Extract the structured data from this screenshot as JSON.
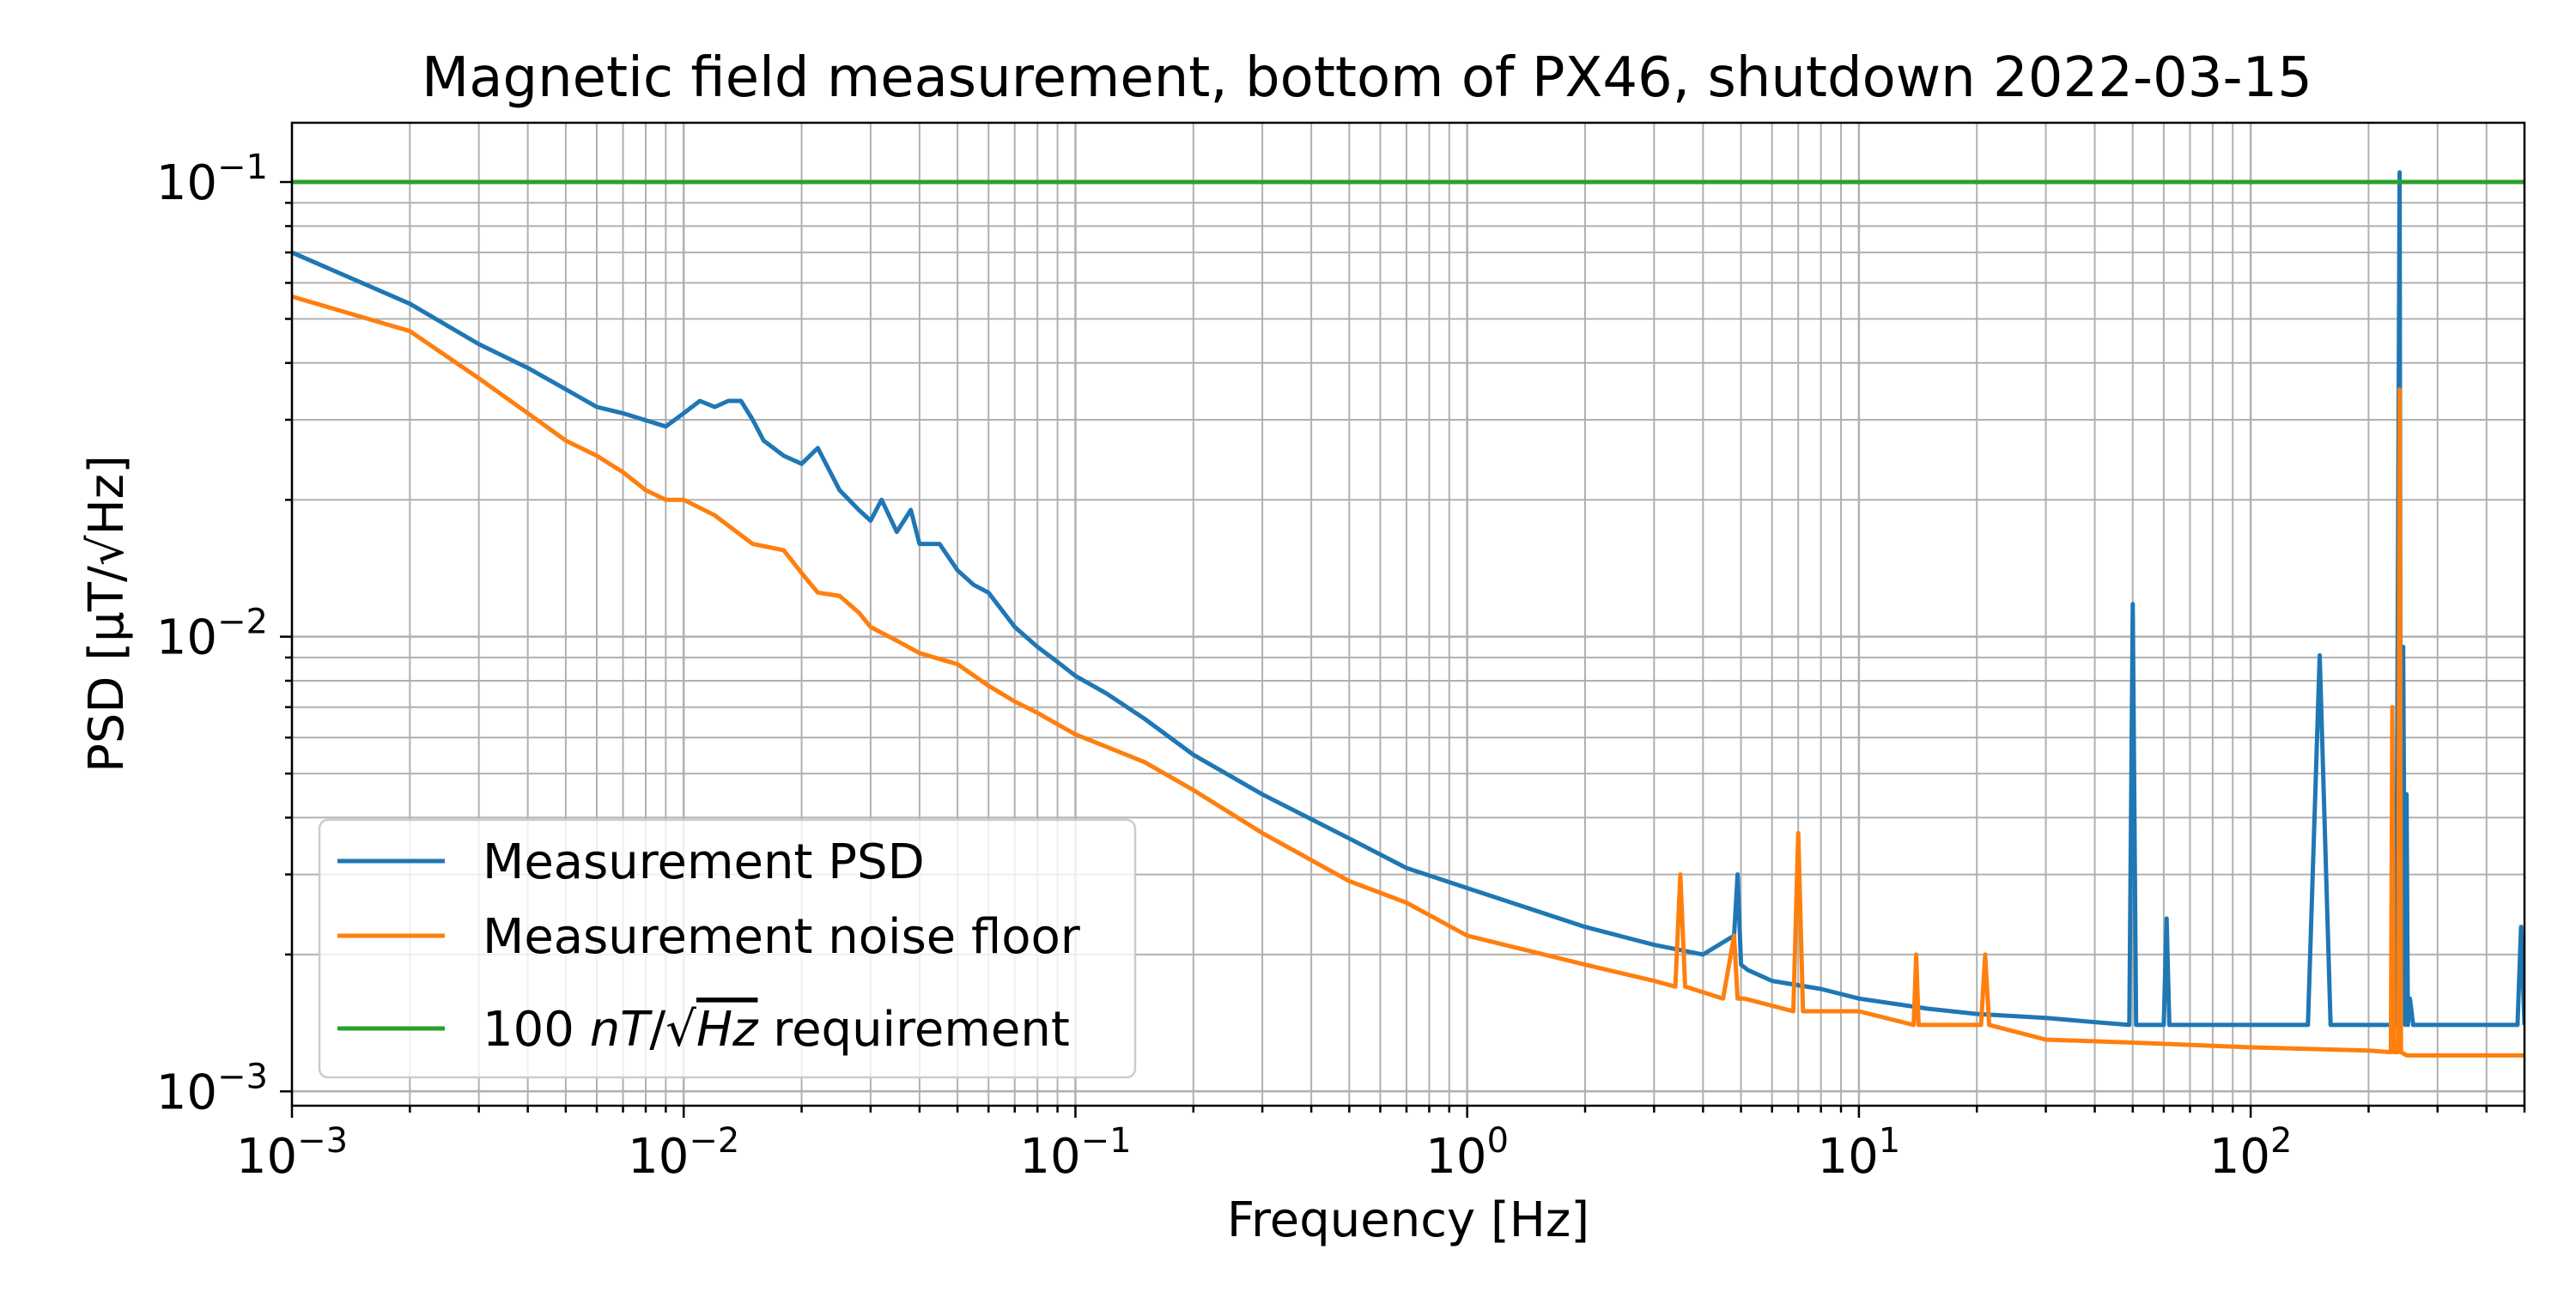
{
  "chart_data": {
    "type": "line",
    "title": "Magnetic field measurement, bottom of PX46, shutdown 2022-03-15",
    "xlabel": "Frequency [Hz]",
    "ylabel": "PSD [μT/√Hz]",
    "xscale": "log",
    "yscale": "log",
    "xlim": [
      0.001,
      500
    ],
    "ylim": [
      0.00093,
      0.135
    ],
    "grid": "major-and-minor",
    "legend_position": "lower-left",
    "x_ticks": [
      {
        "base": "10",
        "exp": "−3"
      },
      {
        "base": "10",
        "exp": "−2"
      },
      {
        "base": "10",
        "exp": "−1"
      },
      {
        "base": "10",
        "exp": "0"
      },
      {
        "base": "10",
        "exp": "1"
      },
      {
        "base": "10",
        "exp": "2"
      }
    ],
    "y_ticks": [
      {
        "base": "10",
        "exp": "−1"
      },
      {
        "base": "10",
        "exp": "−2"
      },
      {
        "base": "10",
        "exp": "−3"
      }
    ],
    "series": [
      {
        "name": "Measurement PSD",
        "color": "#1f77b4",
        "x": [
          0.001,
          0.002,
          0.003,
          0.004,
          0.005,
          0.006,
          0.007,
          0.009,
          0.01,
          0.011,
          0.012,
          0.013,
          0.014,
          0.015,
          0.016,
          0.018,
          0.02,
          0.022,
          0.025,
          0.028,
          0.03,
          0.032,
          0.035,
          0.038,
          0.04,
          0.045,
          0.05,
          0.055,
          0.06,
          0.07,
          0.08,
          0.09,
          0.1,
          0.12,
          0.15,
          0.2,
          0.3,
          0.5,
          0.7,
          1,
          2,
          3,
          4,
          4.8,
          4.9,
          5,
          5.2,
          6,
          8,
          10,
          15,
          20,
          30,
          40,
          49,
          50,
          51,
          60,
          61,
          62,
          80,
          100,
          140,
          150,
          160,
          200,
          235,
          240,
          242,
          245,
          248,
          250,
          252,
          255,
          260,
          300,
          350,
          400,
          480,
          490,
          500
        ],
        "y": [
          0.07,
          0.054,
          0.044,
          0.039,
          0.035,
          0.032,
          0.031,
          0.029,
          0.031,
          0.033,
          0.032,
          0.033,
          0.033,
          0.03,
          0.027,
          0.025,
          0.024,
          0.026,
          0.021,
          0.019,
          0.018,
          0.02,
          0.017,
          0.019,
          0.016,
          0.016,
          0.014,
          0.013,
          0.0125,
          0.0105,
          0.0095,
          0.0088,
          0.0082,
          0.0075,
          0.0066,
          0.0055,
          0.0045,
          0.0036,
          0.0031,
          0.0028,
          0.0023,
          0.0021,
          0.002,
          0.0022,
          0.003,
          0.0019,
          0.00185,
          0.00175,
          0.00168,
          0.0016,
          0.00152,
          0.00148,
          0.00145,
          0.00142,
          0.0014,
          0.0118,
          0.0014,
          0.0014,
          0.0024,
          0.0014,
          0.0014,
          0.0014,
          0.0014,
          0.0091,
          0.0014,
          0.0014,
          0.0014,
          0.105,
          0.0014,
          0.0095,
          0.0014,
          0.0045,
          0.0014,
          0.0016,
          0.0014,
          0.0014,
          0.0014,
          0.0014,
          0.0014,
          0.0023,
          0.0014
        ]
      },
      {
        "name": "Measurement noise floor",
        "color": "#ff7f0e",
        "x": [
          0.001,
          0.002,
          0.003,
          0.004,
          0.005,
          0.006,
          0.007,
          0.008,
          0.009,
          0.01,
          0.012,
          0.015,
          0.018,
          0.02,
          0.022,
          0.025,
          0.028,
          0.03,
          0.035,
          0.04,
          0.05,
          0.06,
          0.07,
          0.08,
          0.1,
          0.15,
          0.2,
          0.3,
          0.5,
          0.7,
          1,
          2,
          3,
          3.4,
          3.5,
          3.6,
          4.5,
          4.8,
          4.9,
          5.1,
          6.8,
          7,
          7.2,
          10,
          13.8,
          14,
          14.2,
          20.5,
          21,
          21.5,
          30,
          50,
          100,
          200,
          228,
          230,
          232,
          238,
          240,
          242,
          250,
          300,
          400,
          500
        ],
        "y": [
          0.056,
          0.047,
          0.037,
          0.031,
          0.027,
          0.025,
          0.023,
          0.021,
          0.02,
          0.02,
          0.0185,
          0.016,
          0.0155,
          0.0138,
          0.0125,
          0.0123,
          0.0113,
          0.0105,
          0.0098,
          0.0092,
          0.0087,
          0.0078,
          0.0072,
          0.0068,
          0.0061,
          0.0053,
          0.0046,
          0.0037,
          0.0029,
          0.0026,
          0.0022,
          0.0019,
          0.00175,
          0.0017,
          0.003,
          0.0017,
          0.0016,
          0.0022,
          0.0016,
          0.0016,
          0.0015,
          0.0037,
          0.0015,
          0.0015,
          0.0014,
          0.002,
          0.0014,
          0.0014,
          0.002,
          0.0014,
          0.0013,
          0.00128,
          0.00125,
          0.00123,
          0.00122,
          0.007,
          0.00122,
          0.00122,
          0.035,
          0.00122,
          0.0012,
          0.0012,
          0.0012,
          0.0012
        ]
      },
      {
        "name_pre": "100 ",
        "name_unit": "nT",
        "name_mid": "/√",
        "name_hz": "Hz",
        "name_post": " requirement",
        "color": "#2ca02c",
        "x": [
          0.001,
          500
        ],
        "y": [
          0.1,
          0.1
        ]
      }
    ]
  }
}
